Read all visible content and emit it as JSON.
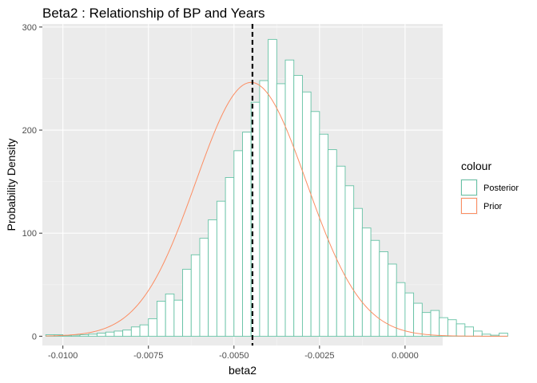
{
  "chart_data": {
    "type": "histogram",
    "title": "Beta2 : Relationship of BP and Years",
    "xlabel": "beta2",
    "ylabel": "Probability Density",
    "xlim": [
      -0.0106,
      0.0011
    ],
    "ylim": [
      -9,
      303
    ],
    "x_ticks": [
      -0.01,
      -0.0075,
      -0.005,
      -0.0025,
      0.0
    ],
    "x_tick_labels": [
      "-0.0100",
      "-0.0075",
      "-0.0050",
      "-0.0025",
      "0.0000"
    ],
    "y_ticks": [
      0,
      100,
      200,
      300
    ],
    "y_tick_labels": [
      "0",
      "100",
      "200",
      "300"
    ],
    "grid": true,
    "legend_position": "right",
    "legend_title": "colour",
    "bin_start": -0.0105,
    "bin_width": 0.00025,
    "histogram": {
      "name": "Posterior",
      "color": "#66c2a5",
      "values": [
        1.5,
        1.5,
        0.5,
        1,
        1.5,
        2,
        3,
        4,
        5,
        6,
        9,
        11,
        17,
        34,
        41,
        35,
        65,
        79,
        95,
        113,
        131,
        154,
        180,
        198,
        227,
        248,
        288,
        245,
        268,
        253,
        237,
        218,
        196,
        181,
        165,
        146,
        124,
        105,
        93,
        82,
        70,
        52,
        42,
        32,
        23,
        25,
        18,
        16,
        12,
        9,
        5,
        2,
        1,
        3
      ]
    },
    "density": {
      "name": "Prior",
      "color": "#fc8d62",
      "mean": -0.0045,
      "sd": 0.00162
    },
    "vline": {
      "x": -0.00446,
      "color": "#000000",
      "style": "dashed"
    },
    "series": [
      {
        "name": "Posterior",
        "color": "#66c2a5"
      },
      {
        "name": "Prior",
        "color": "#fc8d62"
      }
    ]
  }
}
